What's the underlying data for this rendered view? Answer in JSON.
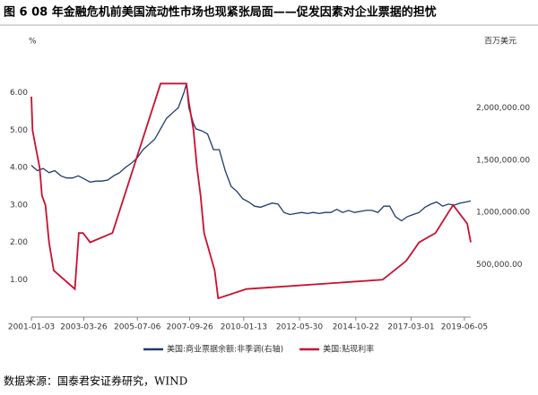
{
  "chart_data": {
    "type": "line",
    "title": "图 6 08 年金融危机前美国流动性市场也现紧张局面——促发因素对企业票据的担忧",
    "y_label": "%",
    "y2_label": "百万美元",
    "source": "数据来源：国泰君安证券研究，WIND",
    "xlim": [
      2001.0,
      2019.7
    ],
    "xticks": [
      {
        "value": 2001.0,
        "label": "2001-01-03"
      },
      {
        "value": 2003.23,
        "label": "2003-03-26"
      },
      {
        "value": 2005.51,
        "label": "2005-07-06"
      },
      {
        "value": 2007.74,
        "label": "2007-09-26"
      },
      {
        "value": 2010.04,
        "label": "2010-01-13"
      },
      {
        "value": 2012.41,
        "label": "2012-05-30"
      },
      {
        "value": 2014.81,
        "label": "2014-10-22"
      },
      {
        "value": 2017.16,
        "label": "2017-03-01"
      },
      {
        "value": 2019.43,
        "label": "2019-06-05"
      }
    ],
    "ylim": [
      0,
      7
    ],
    "yticks": [
      {
        "value": 1,
        "label": "1.00"
      },
      {
        "value": 2,
        "label": "2.00"
      },
      {
        "value": 3,
        "label": "3.00"
      },
      {
        "value": 4,
        "label": "4.00"
      },
      {
        "value": 5,
        "label": "5.00"
      },
      {
        "value": 6,
        "label": "6.00"
      }
    ],
    "y2lim": [
      0,
      2500000
    ],
    "y2ticks": [
      {
        "value": 500000,
        "label": "500,000.00"
      },
      {
        "value": 1000000,
        "label": "1,000,000.00"
      },
      {
        "value": 1500000,
        "label": "1,500,000.00"
      },
      {
        "value": 2000000,
        "label": "2,000,000.00"
      }
    ],
    "series": [
      {
        "name": "美国:商业票据余额:非季调(右轴)",
        "color": "#1f3a6e",
        "axis": "y2",
        "x": [
          2001.0,
          2001.25,
          2001.5,
          2001.75,
          2002.0,
          2002.25,
          2002.5,
          2002.75,
          2003.0,
          2003.25,
          2003.5,
          2003.75,
          2004.0,
          2004.25,
          2004.5,
          2004.75,
          2005.0,
          2005.25,
          2005.5,
          2005.75,
          2006.0,
          2006.25,
          2006.5,
          2006.75,
          2007.0,
          2007.25,
          2007.5,
          2007.6,
          2007.7,
          2007.9,
          2008.0,
          2008.25,
          2008.5,
          2008.75,
          2009.0,
          2009.25,
          2009.5,
          2009.75,
          2010.0,
          2010.25,
          2010.5,
          2010.75,
          2011.0,
          2011.25,
          2011.5,
          2011.75,
          2012.0,
          2012.25,
          2012.5,
          2012.75,
          2013.0,
          2013.25,
          2013.5,
          2013.75,
          2014.0,
          2014.25,
          2014.5,
          2014.75,
          2015.0,
          2015.25,
          2015.5,
          2015.75,
          2016.0,
          2016.25,
          2016.5,
          2016.75,
          2017.0,
          2017.25,
          2017.5,
          2017.75,
          2018.0,
          2018.25,
          2018.5,
          2018.75,
          2019.0,
          2019.25,
          2019.5,
          2019.7
        ],
        "values": [
          1450000,
          1400000,
          1420000,
          1380000,
          1400000,
          1350000,
          1330000,
          1330000,
          1350000,
          1320000,
          1290000,
          1300000,
          1300000,
          1310000,
          1350000,
          1380000,
          1430000,
          1470000,
          1520000,
          1600000,
          1650000,
          1700000,
          1800000,
          1900000,
          1950000,
          2000000,
          2150000,
          2230000,
          2000000,
          1850000,
          1800000,
          1780000,
          1750000,
          1600000,
          1600000,
          1400000,
          1250000,
          1200000,
          1130000,
          1100000,
          1060000,
          1050000,
          1070000,
          1090000,
          1080000,
          1000000,
          980000,
          990000,
          1000000,
          990000,
          1000000,
          990000,
          1000000,
          1000000,
          1030000,
          1000000,
          1020000,
          1000000,
          1010000,
          1020000,
          1020000,
          1000000,
          1060000,
          1060000,
          960000,
          920000,
          960000,
          980000,
          1000000,
          1050000,
          1080000,
          1100000,
          1060000,
          1080000,
          1070000,
          1090000,
          1100000,
          1110000
        ]
      },
      {
        "name": "美国:贴现利率",
        "color": "#c8102e",
        "axis": "y",
        "x": [
          2001.0,
          2001.05,
          2001.2,
          2001.35,
          2001.45,
          2001.6,
          2001.75,
          2001.95,
          2002.85,
          2003.02,
          2003.2,
          2003.5,
          2004.45,
          2006.5,
          2007.6,
          2007.7,
          2007.9,
          2008.05,
          2008.2,
          2008.35,
          2008.8,
          2008.95,
          2010.15,
          2015.95,
          2016.95,
          2017.5,
          2018.2,
          2018.95,
          2019.55,
          2019.7
        ],
        "values": [
          5.9,
          5.0,
          4.5,
          4.0,
          3.25,
          3.0,
          2.0,
          1.25,
          0.75,
          2.25,
          2.25,
          2.0,
          2.25,
          6.25,
          6.25,
          5.75,
          5.0,
          4.0,
          3.25,
          2.25,
          1.25,
          0.5,
          0.75,
          1.0,
          1.5,
          2.0,
          2.25,
          3.0,
          2.5,
          2.0
        ]
      }
    ]
  }
}
